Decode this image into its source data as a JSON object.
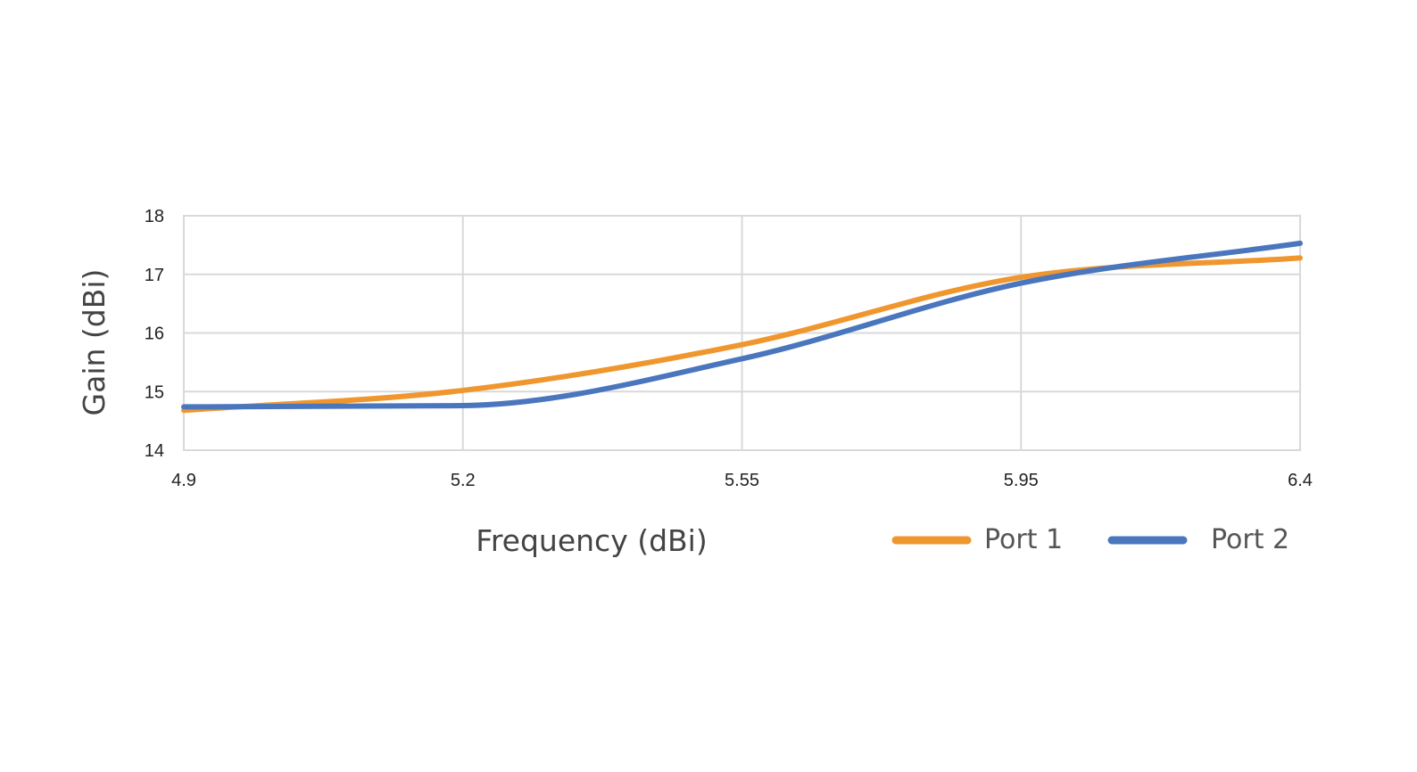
{
  "chart_data": {
    "type": "line",
    "title": "",
    "xlabel": "Frequency (dBi)",
    "ylabel": "Gain (dBi)",
    "x_ticks": [
      "4.9",
      "5.2",
      "5.55",
      "5.95",
      "6.4"
    ],
    "y_ticks": [
      "14",
      "15",
      "16",
      "17",
      "18"
    ],
    "ylim": [
      14,
      18
    ],
    "grid": true,
    "legend_position": "bottom-right",
    "series": [
      {
        "name": "Port 1",
        "color": "#F0962E",
        "x": [
          "4.9",
          "5.2",
          "5.55",
          "5.95",
          "6.4"
        ],
        "values": [
          14.68,
          15.02,
          15.8,
          16.95,
          17.28
        ]
      },
      {
        "name": "Port 2",
        "color": "#4A76BE",
        "x": [
          "4.9",
          "5.2",
          "5.55",
          "5.95",
          "6.4"
        ],
        "values": [
          14.74,
          14.76,
          15.56,
          16.85,
          17.53
        ]
      }
    ]
  }
}
